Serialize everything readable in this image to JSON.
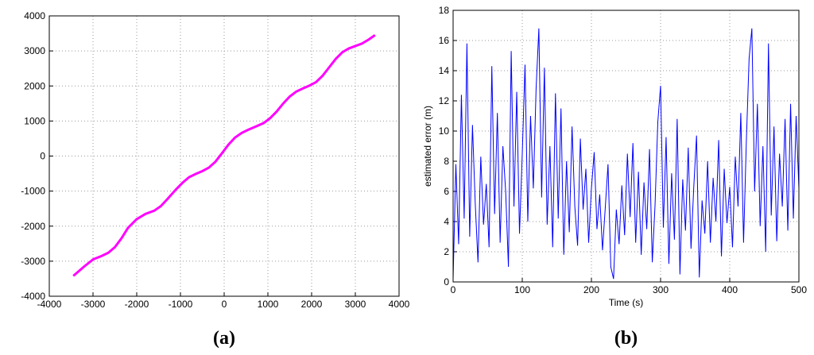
{
  "chart_data": [
    {
      "type": "line",
      "caption": "(a)",
      "color": "#ff00ff",
      "grid": true,
      "xlim": [
        -4000,
        4000
      ],
      "xticks": [
        -4000,
        -3000,
        -2000,
        -1000,
        0,
        1000,
        2000,
        3000,
        4000
      ],
      "ylim": [
        -4000,
        4000
      ],
      "yticks": [
        -4000,
        -3000,
        -2000,
        -1000,
        0,
        1000,
        2000,
        3000,
        4000
      ],
      "x": [
        -3450,
        -3200,
        -3000,
        -2800,
        -2650,
        -2500,
        -2350,
        -2200,
        -2000,
        -1800,
        -1600,
        -1450,
        -1300,
        -1100,
        -950,
        -800,
        -650,
        -500,
        -350,
        -200,
        -50,
        100,
        250,
        400,
        550,
        700,
        900,
        1050,
        1200,
        1350,
        1500,
        1650,
        1800,
        1950,
        2100,
        2250,
        2400,
        2550,
        2700,
        2850,
        3000,
        3150,
        3300,
        3450
      ],
      "values": [
        -3420,
        -3150,
        -2950,
        -2850,
        -2760,
        -2600,
        -2350,
        -2050,
        -1800,
        -1650,
        -1560,
        -1430,
        -1230,
        -950,
        -760,
        -600,
        -510,
        -430,
        -330,
        -160,
        80,
        330,
        530,
        660,
        750,
        830,
        940,
        1080,
        1270,
        1500,
        1700,
        1840,
        1930,
        2010,
        2110,
        2290,
        2530,
        2770,
        2960,
        3070,
        3140,
        3210,
        3320,
        3450
      ]
    },
    {
      "type": "line",
      "caption": "(b)",
      "color": "#0000ff",
      "grid": true,
      "xlabel": "Time (s)",
      "ylabel": "estimated error (m)",
      "xlim": [
        0,
        500
      ],
      "xticks": [
        0,
        100,
        200,
        300,
        400,
        500
      ],
      "ylim": [
        0,
        18
      ],
      "yticks": [
        0,
        2,
        4,
        6,
        8,
        10,
        12,
        14,
        16,
        18
      ],
      "x": [
        0,
        4,
        8,
        12,
        16,
        20,
        24,
        28,
        32,
        36,
        40,
        44,
        48,
        52,
        56,
        60,
        64,
        68,
        72,
        76,
        80,
        84,
        88,
        92,
        96,
        100,
        104,
        108,
        112,
        116,
        120,
        124,
        128,
        132,
        136,
        140,
        144,
        148,
        152,
        156,
        160,
        164,
        168,
        172,
        176,
        180,
        184,
        188,
        192,
        196,
        200,
        204,
        208,
        212,
        216,
        220,
        224,
        228,
        232,
        236,
        240,
        244,
        248,
        252,
        256,
        260,
        264,
        268,
        272,
        276,
        280,
        284,
        288,
        292,
        296,
        300,
        304,
        308,
        312,
        316,
        320,
        324,
        328,
        332,
        336,
        340,
        344,
        348,
        352,
        356,
        360,
        364,
        368,
        372,
        376,
        380,
        384,
        388,
        392,
        396,
        400,
        404,
        408,
        412,
        416,
        420,
        424,
        428,
        432,
        436,
        440,
        444,
        448,
        452,
        456,
        460,
        464,
        468,
        472,
        476,
        480,
        484,
        488,
        492,
        496,
        500
      ],
      "values": [
        0.2,
        7.8,
        2.5,
        12.4,
        4.2,
        15.8,
        3,
        10.4,
        5.2,
        1.3,
        8.3,
        3.8,
        6.5,
        2.3,
        14.3,
        4.5,
        11.2,
        2.6,
        9,
        6,
        1,
        15.3,
        5,
        12.6,
        3.2,
        8.5,
        14.4,
        4,
        11,
        6.2,
        12.8,
        16.8,
        5.6,
        14.2,
        3.8,
        9,
        2.3,
        12.5,
        4.2,
        11.5,
        1.8,
        8,
        3.3,
        10.3,
        5,
        2.4,
        9.5,
        4.8,
        7.5,
        2.6,
        6.2,
        8.6,
        3.5,
        5.8,
        2.1,
        4.9,
        7.8,
        1,
        0.2,
        4.8,
        2.5,
        6.4,
        3.1,
        8.5,
        4.3,
        9.2,
        2.6,
        7.3,
        1.8,
        6.6,
        3.5,
        8.8,
        1.3,
        5.1,
        10.6,
        13,
        3.6,
        9.6,
        1.2,
        7.2,
        2.8,
        10.8,
        0.5,
        6.8,
        3.4,
        8.9,
        2.2,
        6.3,
        9.7,
        0.3,
        5.4,
        3.2,
        8,
        2.6,
        6.9,
        4,
        9.4,
        1.7,
        7.5,
        3.9,
        6.3,
        2.3,
        8.3,
        5,
        11.2,
        2.6,
        9.3,
        14.8,
        16.8,
        6,
        11.8,
        3.7,
        9,
        2,
        15.8,
        4.4,
        10.3,
        2.7,
        8.5,
        5,
        10.8,
        3.4,
        11.8,
        4.2,
        11,
        6.2
      ]
    }
  ]
}
